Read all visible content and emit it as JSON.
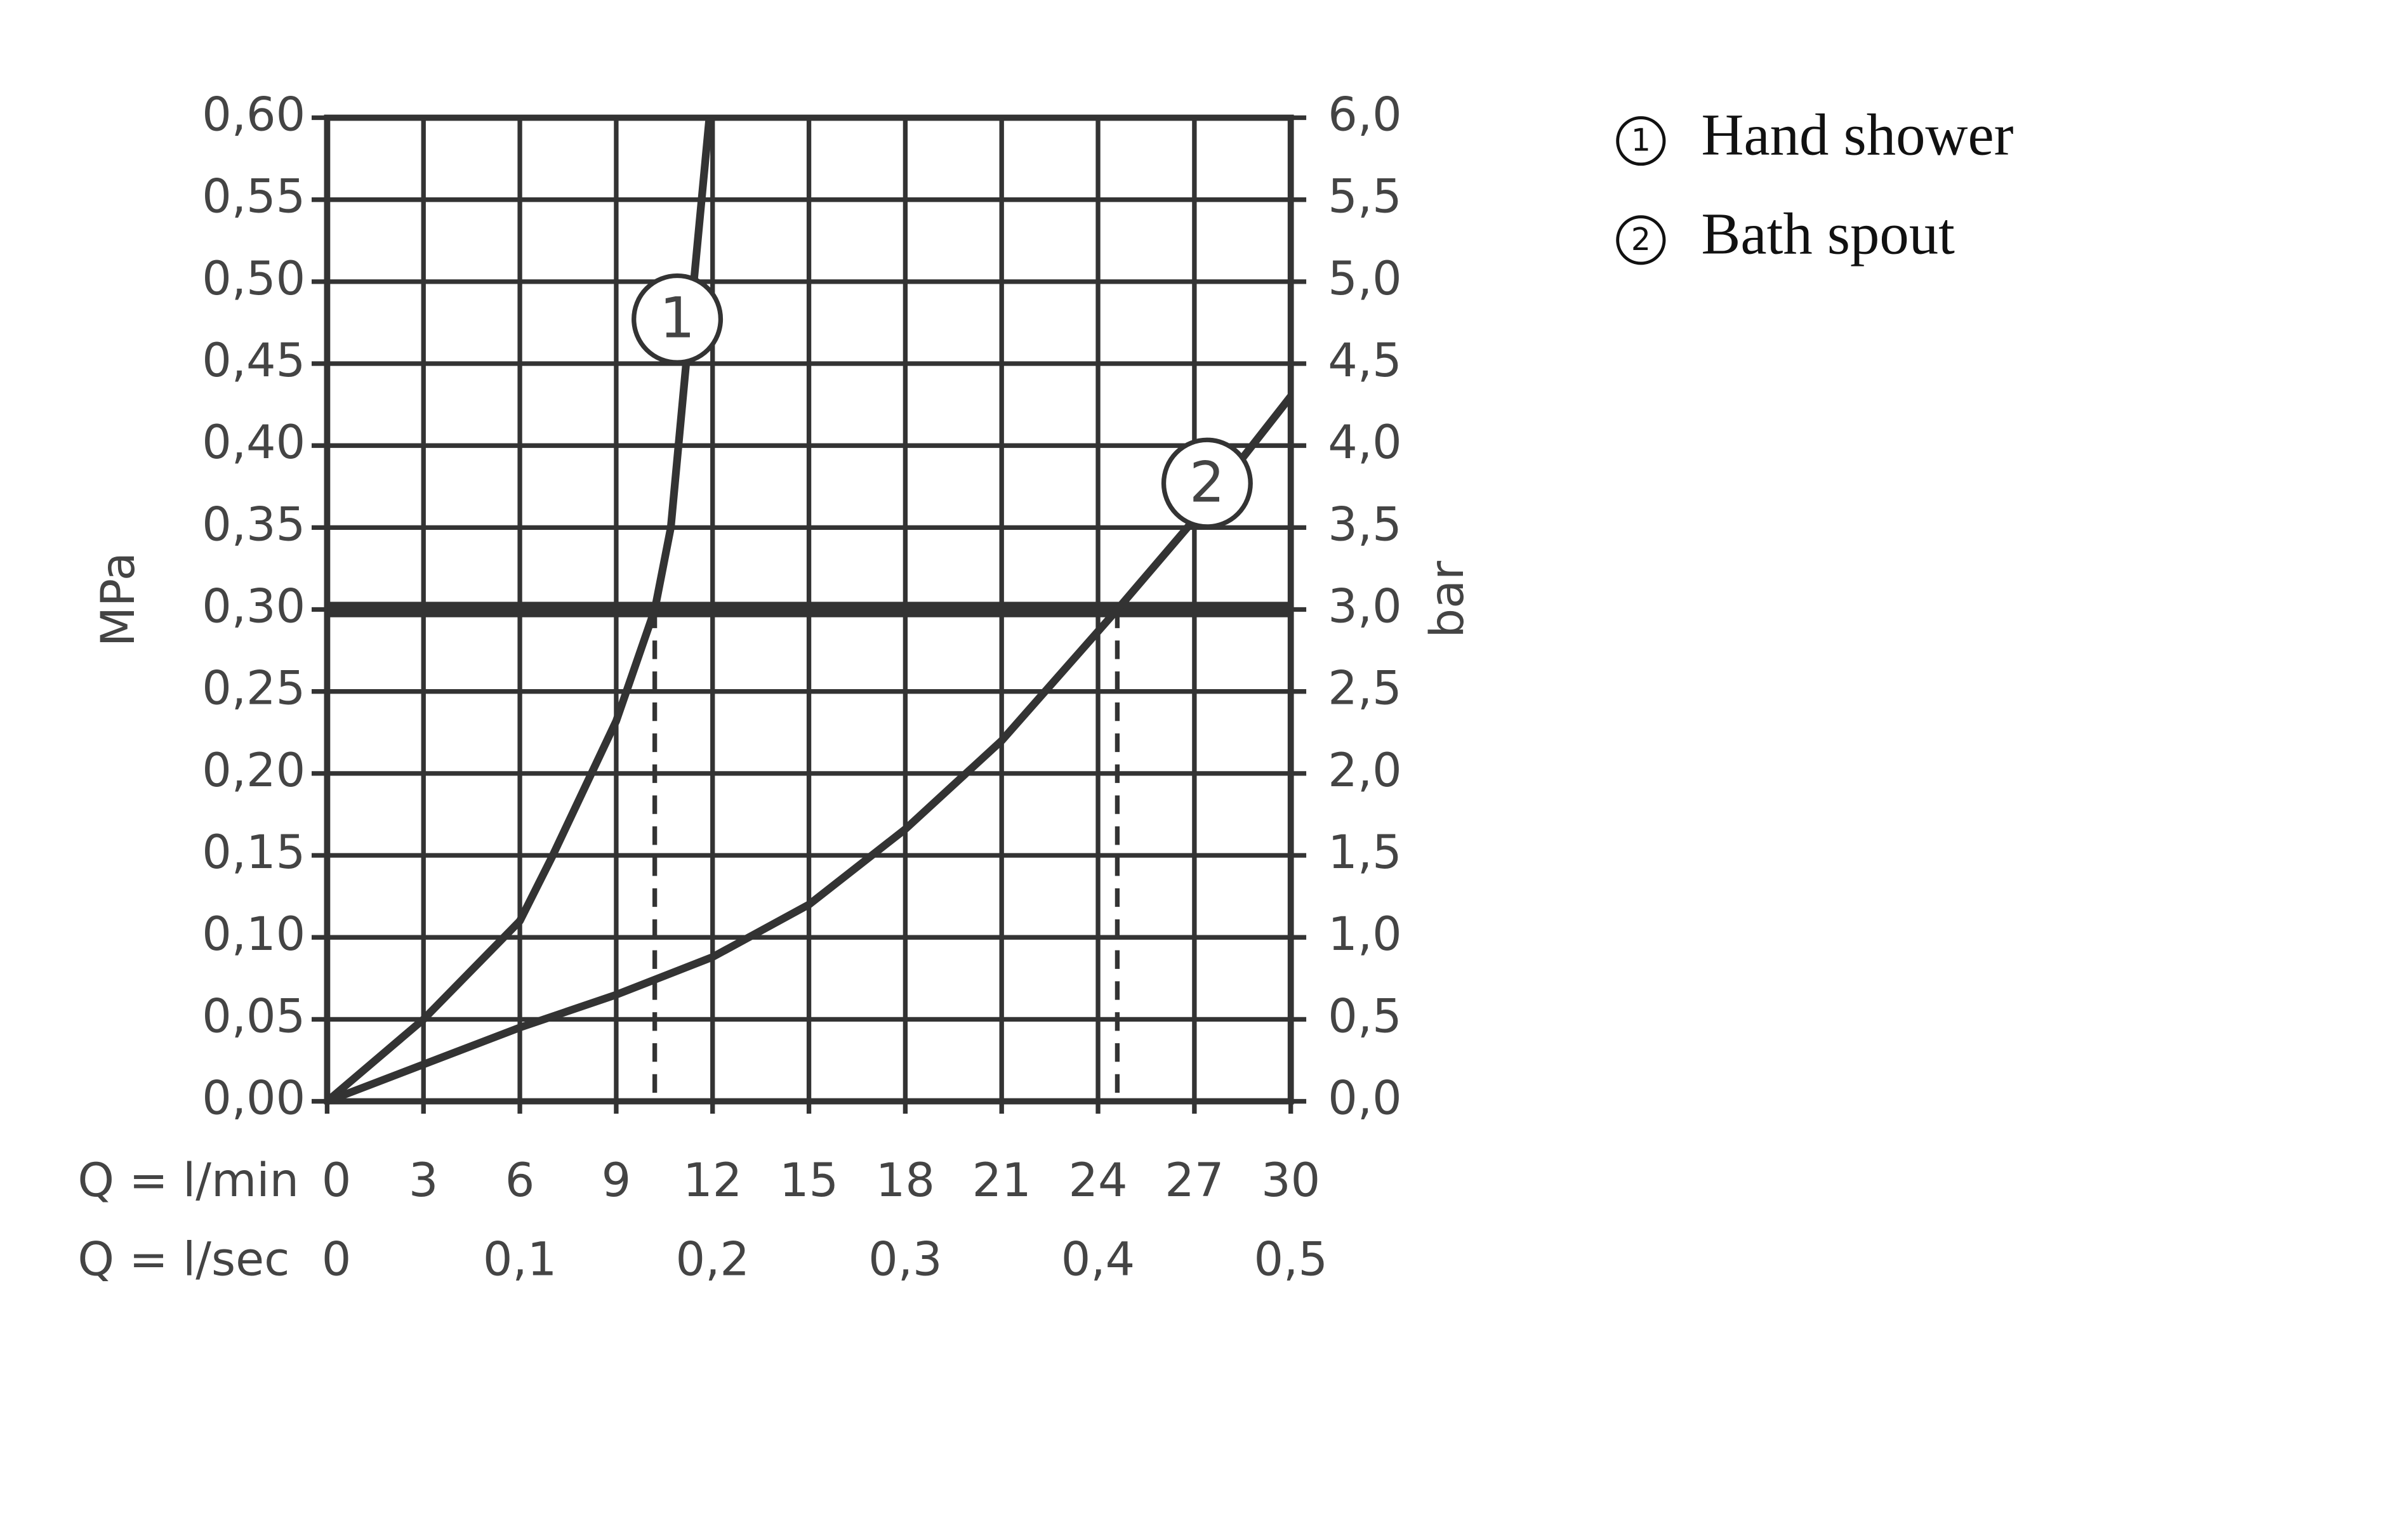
{
  "chart_data": {
    "type": "line",
    "x_label": "Q = l/min",
    "x2_label": "Q = l/sec",
    "y_label": "MPa",
    "y2_label": "bar",
    "xlim": [
      0,
      30
    ],
    "xticks": [
      0,
      3,
      6,
      9,
      12,
      15,
      18,
      21,
      24,
      27,
      30
    ],
    "x2lim": [
      0,
      0.5
    ],
    "x2ticks": [
      0,
      {
        "value": 0.1,
        "label": "0,1"
      },
      {
        "value": 0.2,
        "label": "0,2"
      },
      {
        "value": 0.3,
        "label": "0,3"
      },
      {
        "value": 0.4,
        "label": "0,4"
      },
      {
        "value": 0.5,
        "label": "0,5"
      }
    ],
    "ylim": [
      0,
      0.6
    ],
    "yticks": [
      {
        "value": 0,
        "label": "0,00"
      },
      {
        "value": 0.05,
        "label": "0,05"
      },
      {
        "value": 0.1,
        "label": "0,10"
      },
      {
        "value": 0.15,
        "label": "0,15"
      },
      {
        "value": 0.2,
        "label": "0,20"
      },
      {
        "value": 0.25,
        "label": "0,25"
      },
      {
        "value": 0.3,
        "label": "0,30"
      },
      {
        "value": 0.35,
        "label": "0,35"
      },
      {
        "value": 0.4,
        "label": "0,40"
      },
      {
        "value": 0.45,
        "label": "0,45"
      },
      {
        "value": 0.5,
        "label": "0,50"
      },
      {
        "value": 0.55,
        "label": "0,55"
      },
      {
        "value": 0.6,
        "label": "0,60"
      }
    ],
    "y2lim": [
      0,
      6
    ],
    "y2ticks": [
      {
        "value": 0,
        "label": "0,0"
      },
      {
        "value": 0.5,
        "label": "0,5"
      },
      {
        "value": 1,
        "label": "1,0"
      },
      {
        "value": 1.5,
        "label": "1,5"
      },
      {
        "value": 2,
        "label": "2,0"
      },
      {
        "value": 2.5,
        "label": "2,5"
      },
      {
        "value": 3,
        "label": "3,0"
      },
      {
        "value": 3.5,
        "label": "3,5"
      },
      {
        "value": 4,
        "label": "4,0"
      },
      {
        "value": 4.5,
        "label": "4,5"
      },
      {
        "value": 5,
        "label": "5,0"
      },
      {
        "value": 5.5,
        "label": "5,5"
      },
      {
        "value": 6,
        "label": "6,0"
      }
    ],
    "grid": true,
    "hline": 0.3,
    "vlines": [
      10.2,
      24.6
    ],
    "series": [
      {
        "name": "Hand shower",
        "label": "1",
        "color": "#333333",
        "x": [
          0,
          3,
          6,
          7,
          9,
          10.2,
          10.7,
          11.2,
          11.9
        ],
        "y": [
          0,
          0.05,
          0.11,
          0.149,
          0.232,
          0.3,
          0.35,
          0.455,
          0.6
        ]
      },
      {
        "name": "Bath spout",
        "label": "2",
        "color": "#333333",
        "x": [
          0,
          6,
          9,
          12,
          15,
          18,
          21,
          24.6,
          27,
          30
        ],
        "y": [
          0,
          0.045,
          0.065,
          0.088,
          0.12,
          0.166,
          0.22,
          0.3,
          0.355,
          0.43
        ]
      }
    ]
  }
}
